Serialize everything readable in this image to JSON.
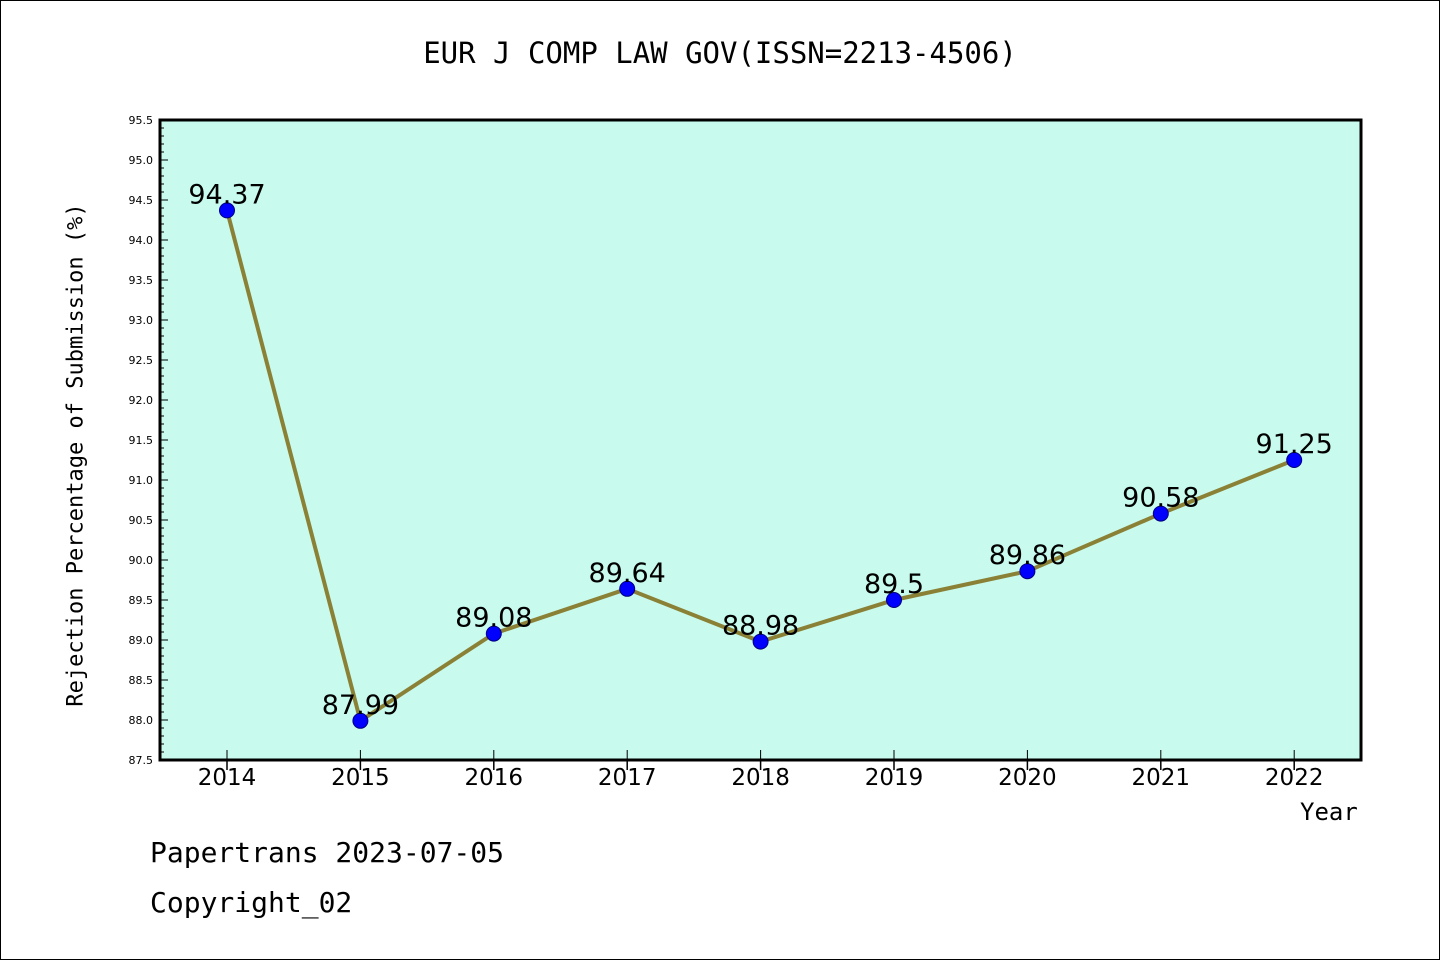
{
  "chart_data": {
    "type": "line",
    "title": "EUR J COMP LAW GOV(ISSN=2213-4506)",
    "xlabel": "Year",
    "ylabel": "Rejection Percentage of Submission (%)",
    "categories": [
      "2014",
      "2015",
      "2016",
      "2017",
      "2018",
      "2019",
      "2020",
      "2021",
      "2022"
    ],
    "series": [
      {
        "values": [
          94.37,
          87.99,
          89.08,
          89.64,
          88.98,
          89.5,
          89.86,
          90.58,
          91.25
        ],
        "labels": [
          "94.37",
          "87.99",
          "89.08",
          "89.64",
          "88.98",
          "89.5",
          "89.86",
          "90.58",
          "91.25"
        ]
      }
    ],
    "ylim": [
      87.5,
      95.5
    ],
    "yticks": [
      "87.5",
      "88.0",
      "88.5",
      "89.0",
      "89.5",
      "90.0",
      "90.5",
      "91.0",
      "91.5",
      "92.0",
      "92.5",
      "93.0",
      "93.5",
      "94.0",
      "94.5",
      "95.0",
      "95.5"
    ],
    "grid": false,
    "colors": {
      "plot_background": "#c8fbee",
      "line": "#8b8136",
      "marker": "#0000ff"
    }
  },
  "footer": {
    "line1": "Papertrans 2023-07-05",
    "line2": "Copyright_02"
  }
}
